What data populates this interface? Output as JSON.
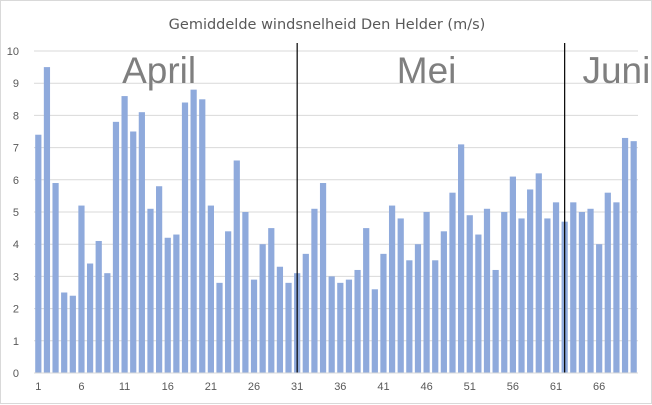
{
  "chart_data": {
    "type": "bar",
    "title": "Gemiddelde windsnelheid Den Helder (m/s)",
    "xlabel": "",
    "ylabel": "",
    "ylim": [
      0,
      10
    ],
    "yticks": [
      0,
      1,
      2,
      3,
      4,
      5,
      6,
      7,
      8,
      9,
      10
    ],
    "xtick_labels": [
      "1",
      "6",
      "11",
      "16",
      "21",
      "26",
      "31",
      "36",
      "41",
      "46",
      "51",
      "56",
      "61",
      "66"
    ],
    "grid": true,
    "bar_color": "#8faadc",
    "x": [
      1,
      2,
      3,
      4,
      5,
      6,
      7,
      8,
      9,
      10,
      11,
      12,
      13,
      14,
      15,
      16,
      17,
      18,
      19,
      20,
      21,
      22,
      23,
      24,
      25,
      26,
      27,
      28,
      29,
      30,
      31,
      32,
      33,
      34,
      35,
      36,
      37,
      38,
      39,
      40,
      41,
      42,
      43,
      44,
      45,
      46,
      47,
      48,
      49,
      50,
      51,
      52,
      53,
      54,
      55,
      56,
      57,
      58,
      59,
      60,
      61,
      62,
      63,
      64,
      65,
      66,
      67,
      68,
      69,
      70
    ],
    "values": [
      7.4,
      9.5,
      5.9,
      2.5,
      2.4,
      5.2,
      3.4,
      4.1,
      3.1,
      7.8,
      8.6,
      7.5,
      8.1,
      5.1,
      5.8,
      4.2,
      4.3,
      8.4,
      8.8,
      8.5,
      5.2,
      2.8,
      4.4,
      6.6,
      5.0,
      2.9,
      4.0,
      4.5,
      3.3,
      2.8,
      3.1,
      3.7,
      5.1,
      5.9,
      3.0,
      2.8,
      2.9,
      3.2,
      4.5,
      2.6,
      3.7,
      5.2,
      4.8,
      3.5,
      4.0,
      5.0,
      3.5,
      4.4,
      5.6,
      7.1,
      4.9,
      4.3,
      5.1,
      3.2,
      5.0,
      6.1,
      4.8,
      5.7,
      6.2,
      4.8,
      5.3,
      4.7,
      5.3,
      5.0,
      5.1,
      4.0,
      5.6,
      5.3,
      7.3,
      7.2
    ],
    "annotations": [
      {
        "text": "April",
        "x": 15
      },
      {
        "text": "Mei",
        "x": 46
      },
      {
        "text": "Juni",
        "x": 68
      }
    ],
    "month_dividers": [
      30.5,
      61.5
    ]
  }
}
